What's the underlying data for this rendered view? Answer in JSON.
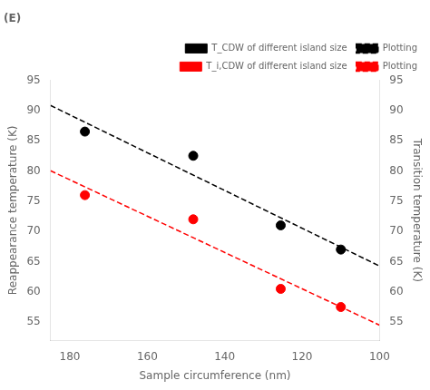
{
  "chart_data": {
    "type": "scatter",
    "title": "(E)",
    "xlabel": "Sample circumference (nm)",
    "ylabel": "Reappearance temperature (K)",
    "y2label": "Transition temperature (K)",
    "xlim": [
      185,
      100
    ],
    "xticks": [
      180,
      160,
      140,
      120,
      100
    ],
    "ylim": [
      52,
      95
    ],
    "yticks": [
      55,
      60,
      65,
      70,
      75,
      80,
      85,
      90,
      95
    ],
    "y2lim": [
      52,
      95
    ],
    "y2ticks": [
      55,
      60,
      65,
      70,
      75,
      80,
      85,
      90,
      95
    ],
    "grid": false,
    "legend": "upper right",
    "series": [
      {
        "name": "T_CDW of different island size",
        "type": "scatter",
        "marker": "circle",
        "color": "#000000",
        "x": [
          176.11,
          148.12,
          125.52,
          109.98
        ],
        "values": [
          86.5,
          82.5,
          71.0,
          67.0
        ]
      },
      {
        "name": "Plotting",
        "type": "line",
        "line_style": "dashed",
        "color": "#000000",
        "x": [
          185,
          100
        ],
        "values": [
          90.8244,
          64.2793
        ]
      },
      {
        "name": "T_i,CDW of different island size",
        "type": "scatter",
        "marker": "circle",
        "color": "#ff0000",
        "x": [
          176.11,
          148.12,
          125.52,
          109.98
        ],
        "values": [
          76.0,
          72.0,
          60.5,
          57.5
        ]
      },
      {
        "name": "Plotting",
        "type": "line",
        "line_style": "dashed",
        "color": "#ff0000",
        "x": [
          185,
          100
        ],
        "values": [
          80.0302,
          54.5114
        ]
      }
    ]
  }
}
